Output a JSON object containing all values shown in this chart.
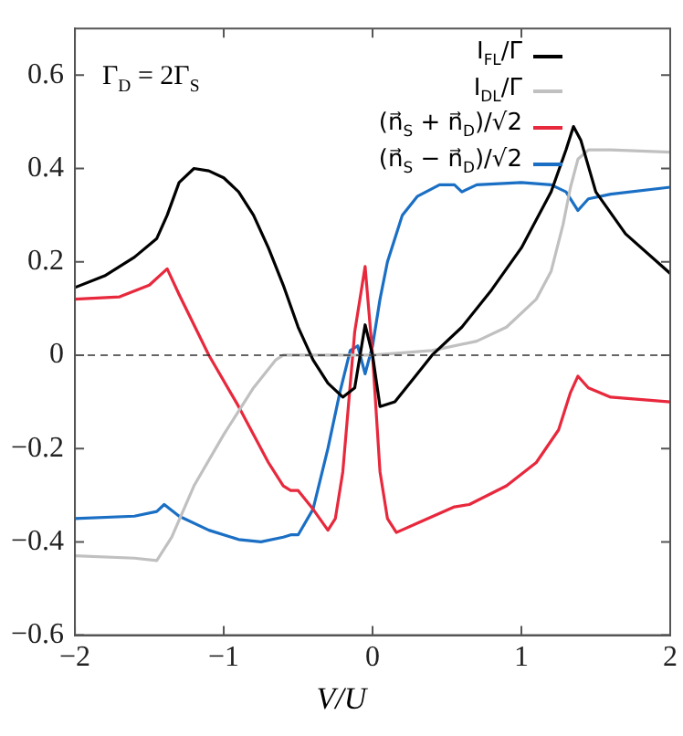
{
  "chart_data": {
    "type": "line",
    "xlabel": "V/U",
    "annotations": [
      "Γ$_{D}$ = 2Γ$_{S}$"
    ],
    "xlim": [
      -2,
      2
    ],
    "xticks": [
      -2,
      -1,
      0,
      1,
      2
    ],
    "ylim": [
      -0.6,
      0.7
    ],
    "yticks": [
      -0.6,
      -0.4,
      -0.2,
      0,
      0.2,
      0.4,
      0.6
    ],
    "grid": false,
    "legend": "top right",
    "marker": "none",
    "line_style": "solid",
    "ref_lines": [
      {
        "axis": "y",
        "value": 0,
        "label": null,
        "color": "#333333",
        "line_style": "dashed"
      }
    ],
    "series": [
      {
        "name": "I$_{FL}$/Γ",
        "color": "#000000",
        "x": [
          -2,
          -1.8,
          -1.6,
          -1.45,
          -1.38,
          -1.3,
          -1.2,
          -1.1,
          -1,
          -0.9,
          -0.8,
          -0.7,
          -0.6,
          -0.5,
          -0.4,
          -0.3,
          -0.2,
          -0.12,
          -0.05,
          0,
          0.05,
          0.15,
          0.3,
          0.4,
          0.6,
          0.8,
          1,
          1.2,
          1.3,
          1.35,
          1.4,
          1.5,
          1.7,
          2
        ],
        "values": [
          0.145,
          0.17,
          0.21,
          0.25,
          0.3,
          0.37,
          0.4,
          0.395,
          0.38,
          0.35,
          0.3,
          0.23,
          0.15,
          0.06,
          -0.01,
          -0.06,
          -0.09,
          -0.07,
          0.065,
          0,
          -0.11,
          -0.1,
          -0.04,
          0,
          0.06,
          0.14,
          0.23,
          0.35,
          0.44,
          0.49,
          0.46,
          0.35,
          0.26,
          0.175
        ]
      },
      {
        "name": "I$_{DL}$/Γ",
        "color": "#c0c0c0",
        "x": [
          -2,
          -1.6,
          -1.45,
          -1.35,
          -1.2,
          -1,
          -0.8,
          -0.65,
          -0.6,
          0,
          0.4,
          0.7,
          0.9,
          1.1,
          1.2,
          1.28,
          1.33,
          1.38,
          1.45,
          1.6,
          2
        ],
        "values": [
          -0.43,
          -0.435,
          -0.44,
          -0.39,
          -0.28,
          -0.17,
          -0.07,
          -0.01,
          0,
          0,
          0.01,
          0.03,
          0.06,
          0.12,
          0.18,
          0.28,
          0.36,
          0.42,
          0.44,
          0.44,
          0.435
        ]
      },
      {
        "name": "(n⃗$_{S}$ + n⃗$_{D}$)/√2",
        "color": "#e8283c",
        "x": [
          -2,
          -1.7,
          -1.5,
          -1.38,
          -1.3,
          -1.1,
          -0.9,
          -0.7,
          -0.6,
          -0.55,
          -0.5,
          -0.4,
          -0.3,
          -0.25,
          -0.2,
          -0.12,
          -0.05,
          0,
          0.05,
          0.1,
          0.16,
          0.3,
          0.55,
          0.65,
          0.9,
          1.1,
          1.25,
          1.33,
          1.38,
          1.45,
          1.6,
          2
        ],
        "values": [
          0.12,
          0.125,
          0.15,
          0.185,
          0.13,
          0,
          -0.11,
          -0.23,
          -0.28,
          -0.29,
          -0.29,
          -0.33,
          -0.375,
          -0.35,
          -0.25,
          0.05,
          0.19,
          0,
          -0.25,
          -0.35,
          -0.38,
          -0.36,
          -0.325,
          -0.32,
          -0.28,
          -0.23,
          -0.16,
          -0.08,
          -0.045,
          -0.07,
          -0.09,
          -0.1
        ]
      },
      {
        "name": "(n⃗$_{S}$ − n⃗$_{D}$)/√2",
        "color": "#1a6fc4",
        "x": [
          -2,
          -1.6,
          -1.45,
          -1.4,
          -1.3,
          -1.1,
          -0.9,
          -0.75,
          -0.6,
          -0.55,
          -0.5,
          -0.4,
          -0.3,
          -0.22,
          -0.15,
          -0.1,
          -0.05,
          0,
          0.05,
          0.1,
          0.2,
          0.3,
          0.45,
          0.55,
          0.6,
          0.7,
          1,
          1.2,
          1.3,
          1.38,
          1.45,
          1.6,
          2
        ],
        "values": [
          -0.35,
          -0.345,
          -0.335,
          -0.32,
          -0.345,
          -0.375,
          -0.395,
          -0.4,
          -0.39,
          -0.385,
          -0.385,
          -0.33,
          -0.2,
          -0.08,
          0.01,
          0.02,
          -0.04,
          0.02,
          0.12,
          0.2,
          0.3,
          0.34,
          0.365,
          0.365,
          0.35,
          0.365,
          0.37,
          0.365,
          0.35,
          0.31,
          0.335,
          0.345,
          0.36
        ]
      }
    ]
  }
}
